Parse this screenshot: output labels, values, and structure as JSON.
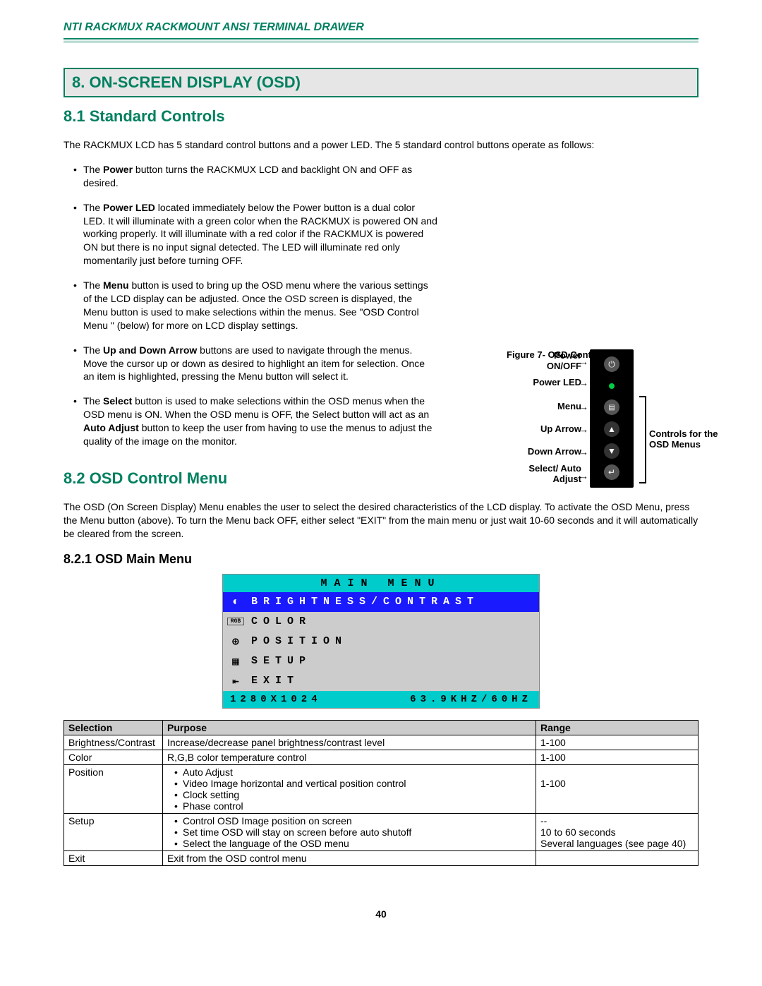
{
  "header": {
    "title": "NTI RACKMUX RACKMOUNT ANSI TERMINAL DRAWER"
  },
  "section": {
    "heading": "8.   ON-SCREEN DISPLAY (OSD)"
  },
  "s81": {
    "heading": "8.1 Standard Controls",
    "intro": "The RACKMUX LCD has 5 standard control buttons and a power LED. The 5 standard control buttons operate as follows:",
    "b1_pre": "The ",
    "b1_bold": "Power",
    "b1_post": " button turns the RACKMUX LCD and backlight ON and OFF as desired.",
    "b2_pre": "The ",
    "b2_bold": "Power LED",
    "b2_post": " located immediately below the Power button is a dual color LED.     It will illuminate with a green color when the RACKMUX is powered ON and working properly.     It will illuminate with a red color if the RACKMUX is powered ON but there is no input signal detected.    The LED will  illuminate red only momentarily just before turning OFF.",
    "b3_pre": "The ",
    "b3_bold": "Menu",
    "b3_post": " button is used to bring up the OSD menu where the various settings of the LCD display can be adjusted. Once the OSD screen is displayed,  the Menu button is used to make selections within the menus.   See \"OSD Control Menu \" (below) for more on LCD display settings.",
    "b4_pre": "The ",
    "b4_bold": "Up and Down Arrow",
    "b4_post": " buttons are used to navigate through the menus.  Move the cursor up or down as desired to highlight an item for selection.   Once an item is highlighted,  pressing the Menu button will select it.",
    "b5_pre": "The ",
    "b5_bold1": "Select",
    "b5_mid": " button is used to make selections within the OSD menus when the OSD menu is ON.  When the OSD menu is OFF,  the Select button will act as an ",
    "b5_bold2": "Auto Adjust",
    "b5_post": " button to keep the user from having to use the menus to adjust the quality of the image on the monitor."
  },
  "controls_figure": {
    "labels": {
      "power": "Power ON/OFF",
      "power_led": "Power LED",
      "menu": "Menu",
      "up": "Up Arrow",
      "down": "Down Arrow",
      "select": "Select/ Auto Adjust"
    },
    "bracket_label": "Controls for the OSD Menus",
    "caption": "Figure 7- OSD Controls",
    "panel": {
      "bg": "#000000",
      "buttons": [
        {
          "type": "power",
          "color": "#555555",
          "icon": "⏻"
        },
        {
          "type": "led",
          "color": "#00cc44"
        },
        {
          "type": "menu",
          "color": "#555555",
          "icon": "▭"
        },
        {
          "type": "up",
          "color": "#333333",
          "icon": "▲"
        },
        {
          "type": "down",
          "color": "#333333",
          "icon": "▼"
        },
        {
          "type": "select",
          "color": "#555555",
          "icon": "↵"
        }
      ]
    }
  },
  "s82": {
    "heading": "8.2 OSD Control Menu",
    "intro": "The OSD (On Screen Display) Menu enables the user to select the desired characteristics of the LCD display.    To activate the OSD Menu,   press the Menu button (above).    To turn the Menu back OFF,  either select \"EXIT\" from the main menu or just wait 10-60 seconds and it will automatically be cleared from the screen.",
    "s821_heading": "8.2.1 OSD Main Menu"
  },
  "osd_menu": {
    "title": "MAIN MENU",
    "rows": [
      {
        "icon": "◐",
        "text": "BRIGHTNESS/CONTRAST",
        "highlight": true
      },
      {
        "icon": "RGB",
        "text": "COLOR",
        "highlight": false,
        "small_icon": true
      },
      {
        "icon": "⊕",
        "text": "POSITION",
        "highlight": false
      },
      {
        "icon": "▦",
        "text": "SETUP",
        "highlight": false
      },
      {
        "icon": "⇤",
        "text": "EXIT",
        "highlight": false
      }
    ],
    "footer_left": "1280X1024",
    "footer_right": "63.9KHZ/60HZ",
    "colors": {
      "titlebar": "#00cccc",
      "highlight": "#1a1aff",
      "body": "#cccccc"
    }
  },
  "table": {
    "headers": [
      "Selection",
      "Purpose",
      "Range"
    ],
    "rows": [
      {
        "selection": "Brightness/Contrast",
        "purpose_text": "Increase/decrease panel brightness/contrast level",
        "range": "1-100"
      },
      {
        "selection": "Color",
        "purpose_text": "R,G,B color temperature control",
        "range": "1-100"
      },
      {
        "selection": "Position",
        "purpose_bullets": [
          "Auto Adjust",
          "Video Image horizontal and vertical position control",
          "Clock setting",
          "Phase control"
        ],
        "range": "\n1-100"
      },
      {
        "selection": "Setup",
        "purpose_bullets": [
          "Control OSD Image position on screen",
          "Set time OSD will stay on screen before auto shutoff",
          "Select the language of the OSD menu"
        ],
        "range_lines": [
          "--",
          "10 to 60 seconds",
          "Several languages (see page 40)"
        ]
      },
      {
        "selection": "Exit",
        "purpose_text": "Exit from the OSD control menu",
        "range": ""
      }
    ]
  },
  "page_number": "40"
}
